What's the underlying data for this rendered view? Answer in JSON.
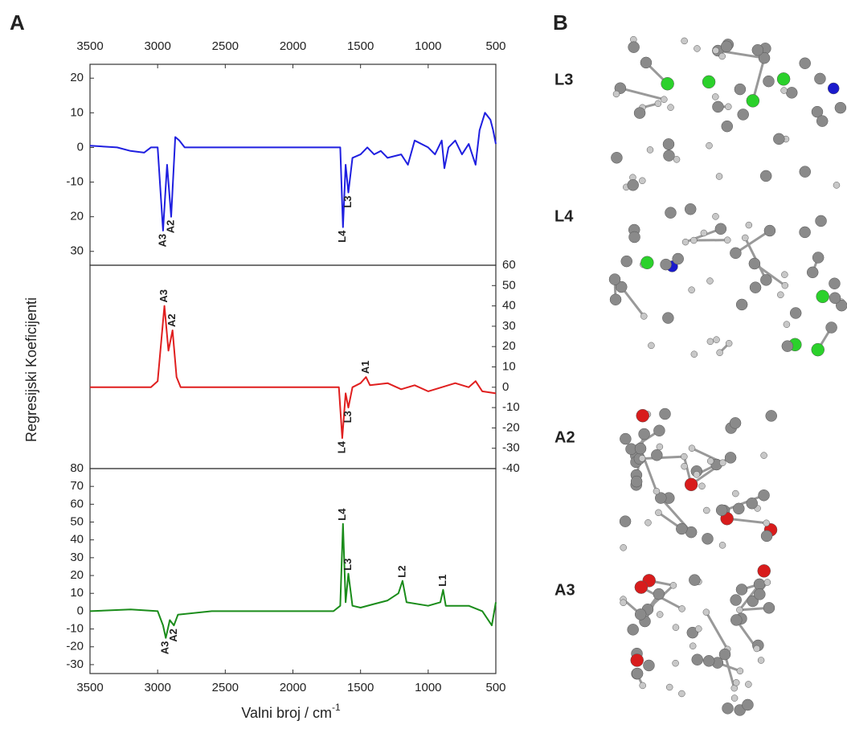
{
  "panel_labels": [
    "A",
    "B"
  ],
  "y_label": "Regresijski Koeficijenti",
  "x_label": {
    "text": "Valni broj / cm",
    "sup": "-1"
  },
  "molecules": [
    "L3",
    "L4",
    "A2",
    "A3"
  ],
  "chart_data": [
    {
      "type": "line",
      "color": "#1f1fe0",
      "xlim": [
        3500,
        500
      ],
      "ylim": [
        -34,
        24
      ],
      "xticks": [
        3500,
        3000,
        2500,
        2000,
        1500,
        1000,
        500
      ],
      "xtick_side": "top",
      "y_side": "left",
      "yticks": [
        20,
        10,
        0,
        -10,
        {
          "value": -20,
          "label": "20"
        },
        {
          "value": -30,
          "label": "30"
        }
      ],
      "x": [
        3500,
        3300,
        3200,
        3100,
        3050,
        3000,
        2960,
        2930,
        2900,
        2870,
        2840,
        2800,
        2500,
        2200,
        1900,
        1700,
        1650,
        1630,
        1610,
        1590,
        1560,
        1500,
        1450,
        1400,
        1350,
        1300,
        1200,
        1150,
        1100,
        1000,
        950,
        900,
        880,
        850,
        800,
        750,
        700,
        650,
        620,
        580,
        540,
        520,
        500
      ],
      "values": [
        0.5,
        0,
        -1,
        -1.5,
        0,
        0,
        -24,
        -5,
        -20,
        3,
        2,
        0,
        0,
        0,
        0,
        0,
        0,
        -23,
        -5,
        -13,
        -3,
        -2,
        0,
        -2,
        -1,
        -3,
        -2,
        -5,
        2,
        0,
        -2,
        2,
        -6,
        0,
        2,
        -2,
        1,
        -5,
        5,
        10,
        8,
        5,
        1
      ],
      "annotations": [
        {
          "text": "A3",
          "x": 2960,
          "y": -24
        },
        {
          "text": "A2",
          "x": 2900,
          "y": -20
        },
        {
          "text": "L4",
          "x": 1630,
          "y": -23
        },
        {
          "text": "L3",
          "x": 1590,
          "y": -13
        }
      ]
    },
    {
      "type": "line",
      "color": "#e01f1f",
      "xlim": [
        3500,
        500
      ],
      "ylim": [
        -40,
        60
      ],
      "y_side": "right",
      "yticks": [
        60,
        50,
        40,
        30,
        20,
        10,
        0,
        -10,
        -20,
        -30,
        -40
      ],
      "x": [
        3500,
        3300,
        3100,
        3050,
        3000,
        2970,
        2950,
        2920,
        2890,
        2860,
        2830,
        2500,
        2000,
        1660,
        1635,
        1610,
        1590,
        1560,
        1500,
        1460,
        1430,
        1300,
        1200,
        1100,
        1000,
        900,
        800,
        700,
        650,
        600,
        500
      ],
      "values": [
        0,
        0,
        0,
        0,
        3,
        25,
        40,
        18,
        28,
        5,
        0,
        0,
        0,
        0,
        -25,
        -3,
        -10,
        0,
        2,
        5,
        1,
        2,
        -1,
        1,
        -2,
        0,
        2,
        0,
        3,
        -2,
        -3
      ],
      "annotations": [
        {
          "text": "A3",
          "x": 2950,
          "y": 40
        },
        {
          "text": "A2",
          "x": 2890,
          "y": 28
        },
        {
          "text": "A1",
          "x": 1460,
          "y": 5
        },
        {
          "text": "L4",
          "x": 1635,
          "y": -25
        },
        {
          "text": "L3",
          "x": 1590,
          "y": -10
        }
      ]
    },
    {
      "type": "line",
      "color": "#1a8c1a",
      "xlim": [
        3500,
        500
      ],
      "ylim": [
        -35,
        80
      ],
      "xticks": [
        3500,
        3000,
        2500,
        2000,
        1500,
        1000,
        500
      ],
      "xtick_side": "bottom",
      "y_side": "left",
      "yticks": [
        80,
        70,
        60,
        50,
        40,
        30,
        20,
        10,
        0,
        -10,
        -20,
        -30
      ],
      "x": [
        3500,
        3200,
        3000,
        2960,
        2940,
        2910,
        2880,
        2850,
        2600,
        2000,
        1700,
        1650,
        1630,
        1610,
        1590,
        1560,
        1500,
        1400,
        1300,
        1220,
        1190,
        1160,
        1000,
        910,
        890,
        870,
        800,
        700,
        600,
        530,
        500
      ],
      "values": [
        0,
        1,
        0,
        -8,
        -15,
        -5,
        -8,
        -2,
        0,
        0,
        0,
        3,
        49,
        5,
        21,
        3,
        2,
        4,
        6,
        10,
        17,
        5,
        3,
        5,
        12,
        3,
        3,
        3,
        0,
        -8,
        5
      ],
      "annotations": [
        {
          "text": "L4",
          "x": 1630,
          "y": 49
        },
        {
          "text": "L3",
          "x": 1590,
          "y": 21
        },
        {
          "text": "L2",
          "x": 1190,
          "y": 17
        },
        {
          "text": "L1",
          "x": 890,
          "y": 12
        },
        {
          "text": "A3",
          "x": 2940,
          "y": -15
        },
        {
          "text": "A2",
          "x": 2880,
          "y": -8
        }
      ]
    }
  ]
}
